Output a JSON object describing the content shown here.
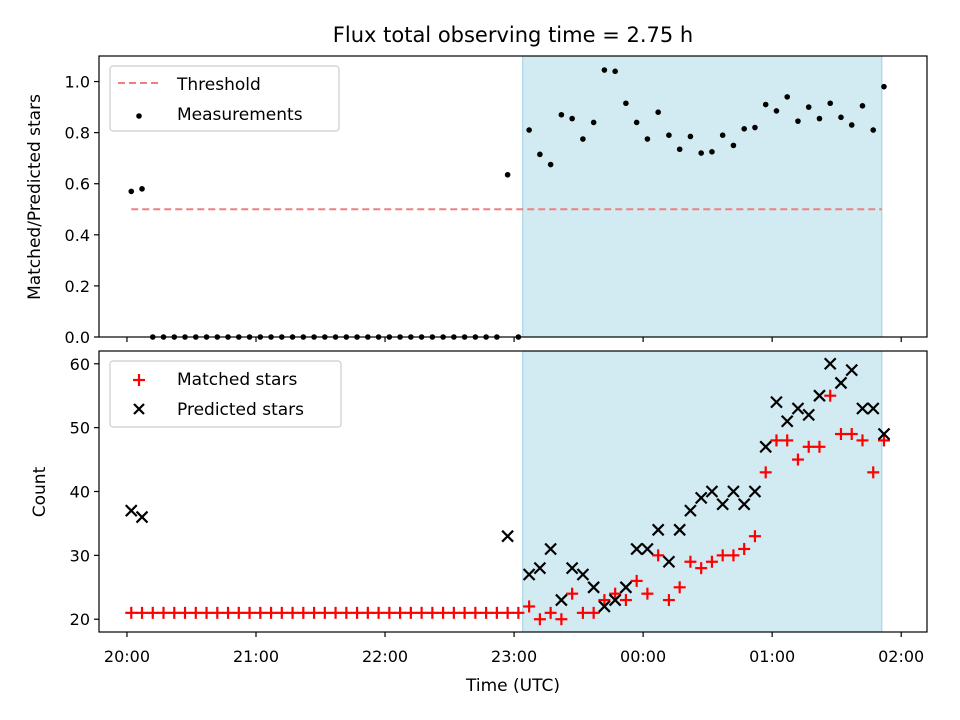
{
  "title": "Flux total observing time = 2.75 h",
  "colors": {
    "threshold": "#f08080",
    "measurement": "#000000",
    "matched": "#ff0000",
    "predicted": "#000000",
    "observing_span": "#add8e6"
  },
  "chart_data": [
    {
      "type": "scatter",
      "ylabel": "Matched/Predicted stars",
      "ylim": [
        0,
        1.1
      ],
      "xlim": [
        "19:47",
        "02:12"
      ],
      "yticks": [
        "0.0",
        "0.2",
        "0.4",
        "0.6",
        "0.8",
        "1.0"
      ],
      "grid": false,
      "legend_position": "upper-left",
      "shaded_span": [
        "23:04",
        "01:51"
      ],
      "threshold": {
        "name": "Threshold",
        "value": 0.5,
        "x_start": "20:02",
        "x_end": "01:51"
      },
      "series": [
        {
          "name": "Measurements",
          "x": [
            "20:02",
            "20:07",
            "20:12",
            "20:17",
            "20:22",
            "20:27",
            "20:32",
            "20:37",
            "20:42",
            "20:47",
            "20:52",
            "20:57",
            "21:02",
            "21:07",
            "21:12",
            "21:17",
            "21:22",
            "21:27",
            "21:32",
            "21:37",
            "21:42",
            "21:47",
            "21:52",
            "21:57",
            "22:02",
            "22:07",
            "22:12",
            "22:17",
            "22:22",
            "22:27",
            "22:32",
            "22:37",
            "22:42",
            "22:47",
            "22:52",
            "22:57",
            "23:02",
            "23:07",
            "23:12",
            "23:17",
            "23:22",
            "23:27",
            "23:32",
            "23:37",
            "23:42",
            "23:47",
            "23:52",
            "23:57",
            "00:02",
            "00:07",
            "00:12",
            "00:17",
            "00:22",
            "00:27",
            "00:32",
            "00:37",
            "00:42",
            "00:47",
            "00:52",
            "00:57",
            "01:02",
            "01:07",
            "01:12",
            "01:17",
            "01:22",
            "01:27",
            "01:32",
            "01:37",
            "01:42",
            "01:47",
            "01:52"
          ],
          "values": [
            0.57,
            0.58,
            0,
            0,
            0,
            0,
            0,
            0,
            0,
            0,
            0,
            0,
            0,
            0,
            0,
            0,
            0,
            0,
            0,
            0,
            0,
            0,
            0,
            0,
            0,
            0,
            0,
            0,
            0,
            0,
            0,
            0,
            0,
            0,
            0,
            0.635,
            0,
            0.81,
            0.715,
            0.675,
            0.87,
            0.855,
            0.775,
            0.84,
            1.045,
            1.04,
            0.915,
            0.84,
            0.775,
            0.88,
            0.79,
            0.735,
            0.785,
            0.72,
            0.725,
            0.79,
            0.75,
            0.815,
            0.82,
            0.91,
            0.885,
            0.94,
            0.845,
            0.9,
            0.855,
            0.915,
            0.86,
            0.83,
            0.905,
            0.81,
            0.98
          ]
        }
      ]
    },
    {
      "type": "scatter",
      "xlabel": "Time (UTC)",
      "ylabel": "Count",
      "ylim": [
        18,
        62
      ],
      "yticks": [
        "20",
        "30",
        "40",
        "50",
        "60"
      ],
      "xticks": [
        "20:00",
        "21:00",
        "22:00",
        "23:00",
        "00:00",
        "01:00",
        "02:00"
      ],
      "xlim": [
        "19:47",
        "02:12"
      ],
      "grid": false,
      "legend_position": "upper-left",
      "shaded_span": [
        "23:04",
        "01:51"
      ],
      "series": [
        {
          "name": "Matched stars",
          "marker": "plus",
          "x": [
            "20:02",
            "20:07",
            "20:12",
            "20:17",
            "20:22",
            "20:27",
            "20:32",
            "20:37",
            "20:42",
            "20:47",
            "20:52",
            "20:57",
            "21:02",
            "21:07",
            "21:12",
            "21:17",
            "21:22",
            "21:27",
            "21:32",
            "21:37",
            "21:42",
            "21:47",
            "21:52",
            "21:57",
            "22:02",
            "22:07",
            "22:12",
            "22:17",
            "22:22",
            "22:27",
            "22:32",
            "22:37",
            "22:42",
            "22:47",
            "22:52",
            "22:57",
            "23:02",
            "23:07",
            "23:12",
            "23:17",
            "23:22",
            "23:27",
            "23:32",
            "23:37",
            "23:42",
            "23:47",
            "23:52",
            "23:57",
            "00:02",
            "00:07",
            "00:12",
            "00:17",
            "00:22",
            "00:27",
            "00:32",
            "00:37",
            "00:42",
            "00:47",
            "00:52",
            "00:57",
            "01:02",
            "01:07",
            "01:12",
            "01:17",
            "01:22",
            "01:27",
            "01:32",
            "01:37",
            "01:42",
            "01:47",
            "01:52"
          ],
          "values": [
            21,
            21,
            21,
            21,
            21,
            21,
            21,
            21,
            21,
            21,
            21,
            21,
            21,
            21,
            21,
            21,
            21,
            21,
            21,
            21,
            21,
            21,
            21,
            21,
            21,
            21,
            21,
            21,
            21,
            21,
            21,
            21,
            21,
            21,
            21,
            21,
            21,
            22,
            20,
            21,
            20,
            24,
            21,
            21,
            23,
            24,
            23,
            26,
            24,
            30,
            23,
            25,
            29,
            28,
            29,
            30,
            30,
            31,
            33,
            43,
            48,
            48,
            45,
            47,
            47,
            55,
            49,
            49,
            48,
            43,
            48
          ]
        },
        {
          "name": "Predicted stars",
          "marker": "x",
          "x": [
            "20:02",
            "20:07",
            "22:57",
            "23:07",
            "23:12",
            "23:17",
            "23:22",
            "23:27",
            "23:32",
            "23:37",
            "23:42",
            "23:47",
            "23:52",
            "23:57",
            "00:02",
            "00:07",
            "00:12",
            "00:17",
            "00:22",
            "00:27",
            "00:32",
            "00:37",
            "00:42",
            "00:47",
            "00:52",
            "00:57",
            "01:02",
            "01:07",
            "01:12",
            "01:17",
            "01:22",
            "01:27",
            "01:32",
            "01:37",
            "01:42",
            "01:47",
            "01:52"
          ],
          "values": [
            37,
            36,
            33,
            27,
            28,
            31,
            23,
            28,
            27,
            25,
            22,
            23,
            25,
            31,
            31,
            34,
            29,
            34,
            37,
            39,
            40,
            38,
            40,
            38,
            40,
            47,
            54,
            51,
            53,
            52,
            55,
            60,
            57,
            59,
            53,
            53,
            49
          ]
        }
      ]
    }
  ]
}
